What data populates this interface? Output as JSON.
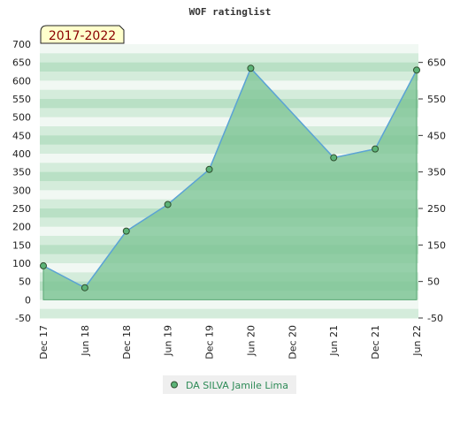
{
  "chart_data": {
    "type": "area",
    "title": "WOF ratinglist",
    "period_label": "2017-2022",
    "x": [
      "Dec 17",
      "Jun 18",
      "Dec 18",
      "Jun 19",
      "Dec 19",
      "Jun 20",
      "Dec 20",
      "Jun 21",
      "Dec 21",
      "Jun 22"
    ],
    "series": [
      {
        "name": "DA SILVA Jamile Lima",
        "points": [
          {
            "x": "Dec 17",
            "y": 93
          },
          {
            "x": "Jun 18",
            "y": 33
          },
          {
            "x": "Dec 18",
            "y": 188
          },
          {
            "x": "Jun 19",
            "y": 261
          },
          {
            "x": "Dec 19",
            "y": 357
          },
          {
            "x": "Jun 20",
            "y": 634
          },
          {
            "x": "Jun 21",
            "y": 389
          },
          {
            "x": "Dec 21",
            "y": 413
          },
          {
            "x": "Jun 22",
            "y": 629
          }
        ]
      }
    ],
    "y_left_ticks": [
      700,
      650,
      600,
      550,
      500,
      450,
      400,
      350,
      300,
      250,
      200,
      150,
      100,
      50,
      0,
      -50
    ],
    "y_right_ticks": [
      650,
      550,
      450,
      350,
      250,
      150,
      50,
      -50
    ],
    "ylim": [
      -50,
      700
    ],
    "grid": true,
    "legend": "bottom-center",
    "colors": {
      "line": "#5ba3d6",
      "area": "#7cc495",
      "marker": "#5cb377",
      "band_light": "#f1f8f3",
      "band_dark": "#b9e0c5",
      "period_bg": "#ffffcc"
    }
  }
}
